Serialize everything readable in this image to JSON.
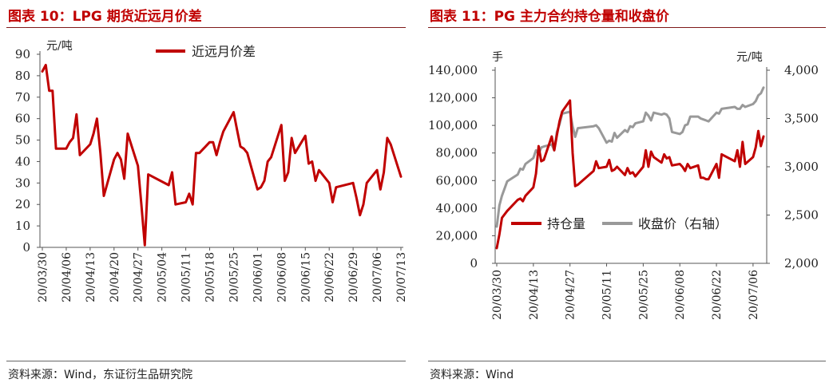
{
  "charts": [
    {
      "title": "图表 10：LPG 期货近远月价差",
      "source": "资料来源：Wind，东证衍生品研究院"
    },
    {
      "title": "图表 11：PG 主力合约持仓量和收盘价",
      "source": "资料来源：Wind"
    }
  ],
  "chart_data": [
    {
      "type": "line",
      "title": "图表 10：LPG 期货近远月价差",
      "ylabel": "元/吨",
      "ylim": [
        0,
        90
      ],
      "yticks": [
        0,
        10,
        20,
        30,
        40,
        50,
        60,
        70,
        80,
        90
      ],
      "xticks": [
        "20/03/30",
        "20/04/06",
        "20/04/13",
        "20/04/20",
        "20/04/27",
        "20/05/04",
        "20/05/11",
        "20/05/18",
        "20/05/25",
        "20/06/01",
        "20/06/08",
        "20/06/15",
        "20/06/22",
        "20/06/29",
        "20/07/06",
        "20/07/13"
      ],
      "legend": "top-center",
      "grid": false,
      "color": "#c00000",
      "series": [
        {
          "name": "近远月价差",
          "points": [
            [
              "2020-03-30",
              82
            ],
            [
              "2020-03-31",
              85
            ],
            [
              "2020-04-01",
              73
            ],
            [
              "2020-04-02",
              73
            ],
            [
              "2020-04-03",
              46
            ],
            [
              "2020-04-06",
              46
            ],
            [
              "2020-04-07",
              49
            ],
            [
              "2020-04-08",
              51
            ],
            [
              "2020-04-09",
              62
            ],
            [
              "2020-04-10",
              43
            ],
            [
              "2020-04-13",
              48
            ],
            [
              "2020-04-14",
              53
            ],
            [
              "2020-04-15",
              60
            ],
            [
              "2020-04-16",
              44
            ],
            [
              "2020-04-17",
              24
            ],
            [
              "2020-04-20",
              41
            ],
            [
              "2020-04-21",
              44
            ],
            [
              "2020-04-22",
              41
            ],
            [
              "2020-04-23",
              32
            ],
            [
              "2020-04-24",
              53
            ],
            [
              "2020-04-27",
              38
            ],
            [
              "2020-04-28",
              20
            ],
            [
              "2020-04-29",
              1
            ],
            [
              "2020-04-30",
              34
            ],
            [
              "2020-05-06",
              29
            ],
            [
              "2020-05-07",
              35
            ],
            [
              "2020-05-08",
              20
            ],
            [
              "2020-05-11",
              21
            ],
            [
              "2020-05-12",
              25
            ],
            [
              "2020-05-13",
              20
            ],
            [
              "2020-05-14",
              44
            ],
            [
              "2020-05-15",
              44
            ],
            [
              "2020-05-18",
              49
            ],
            [
              "2020-05-19",
              49
            ],
            [
              "2020-05-20",
              43
            ],
            [
              "2020-05-21",
              49
            ],
            [
              "2020-05-22",
              54
            ],
            [
              "2020-05-25",
              63
            ],
            [
              "2020-05-26",
              55
            ],
            [
              "2020-05-27",
              47
            ],
            [
              "2020-05-28",
              46
            ],
            [
              "2020-05-29",
              44
            ],
            [
              "2020-06-01",
              27
            ],
            [
              "2020-06-02",
              28
            ],
            [
              "2020-06-03",
              31
            ],
            [
              "2020-06-04",
              40
            ],
            [
              "2020-06-05",
              42
            ],
            [
              "2020-06-08",
              57
            ],
            [
              "2020-06-09",
              31
            ],
            [
              "2020-06-10",
              35
            ],
            [
              "2020-06-11",
              51
            ],
            [
              "2020-06-12",
              44
            ],
            [
              "2020-06-15",
              52
            ],
            [
              "2020-06-16",
              39
            ],
            [
              "2020-06-17",
              40
            ],
            [
              "2020-06-18",
              31
            ],
            [
              "2020-06-19",
              36
            ],
            [
              "2020-06-22",
              30
            ],
            [
              "2020-06-23",
              21
            ],
            [
              "2020-06-24",
              28
            ],
            [
              "2020-06-29",
              30
            ],
            [
              "2020-06-30",
              23
            ],
            [
              "2020-07-01",
              15
            ],
            [
              "2020-07-02",
              20
            ],
            [
              "2020-07-03",
              30
            ],
            [
              "2020-07-06",
              36
            ],
            [
              "2020-07-07",
              27
            ],
            [
              "2020-07-08",
              35
            ],
            [
              "2020-07-09",
              51
            ],
            [
              "2020-07-10",
              48
            ],
            [
              "2020-07-13",
              33
            ]
          ]
        }
      ]
    },
    {
      "type": "line",
      "title": "图表 11：PG 主力合约持仓量和收盘价",
      "ylabel": "手",
      "ylabel_right": "元/吨",
      "ylim": [
        0,
        140000
      ],
      "ylim_right": [
        2000,
        4000
      ],
      "yticks": [
        "0",
        "20,000",
        "40,000",
        "60,000",
        "80,000",
        "100,000",
        "120,000",
        "140,000"
      ],
      "yticks_right": [
        "2,000",
        "2,500",
        "3,000",
        "3,500",
        "4,000"
      ],
      "xticks": [
        "20/03/30",
        "20/04/13",
        "20/04/27",
        "20/05/11",
        "20/05/25",
        "20/06/08",
        "20/06/22",
        "20/07/06"
      ],
      "legend": "bottom-center",
      "grid": false,
      "series": [
        {
          "name": "持仓量",
          "axis": "left",
          "color": "#c00000",
          "points": [
            [
              "2020-03-30",
              11000
            ],
            [
              "2020-03-31",
              21000
            ],
            [
              "2020-04-01",
              33000
            ],
            [
              "2020-04-03",
              38000
            ],
            [
              "2020-04-07",
              46000
            ],
            [
              "2020-04-08",
              47000
            ],
            [
              "2020-04-09",
              45000
            ],
            [
              "2020-04-10",
              49000
            ],
            [
              "2020-04-13",
              55000
            ],
            [
              "2020-04-14",
              65000
            ],
            [
              "2020-04-15",
              85000
            ],
            [
              "2020-04-16",
              74000
            ],
            [
              "2020-04-17",
              75000
            ],
            [
              "2020-04-20",
              92000
            ],
            [
              "2020-04-21",
              82000
            ],
            [
              "2020-04-22",
              93000
            ],
            [
              "2020-04-23",
              103000
            ],
            [
              "2020-04-24",
              110000
            ],
            [
              "2020-04-27",
              118000
            ],
            [
              "2020-04-28",
              80000
            ],
            [
              "2020-04-29",
              56000
            ],
            [
              "2020-04-30",
              57000
            ],
            [
              "2020-05-06",
              67000
            ],
            [
              "2020-05-07",
              74000
            ],
            [
              "2020-05-08",
              69000
            ],
            [
              "2020-05-11",
              70000
            ],
            [
              "2020-05-12",
              75000
            ],
            [
              "2020-05-13",
              67000
            ],
            [
              "2020-05-14",
              68000
            ],
            [
              "2020-05-15",
              70000
            ],
            [
              "2020-05-18",
              64000
            ],
            [
              "2020-05-19",
              69000
            ],
            [
              "2020-05-20",
              65000
            ],
            [
              "2020-05-21",
              66000
            ],
            [
              "2020-05-22",
              63000
            ],
            [
              "2020-05-25",
              70000
            ],
            [
              "2020-05-26",
              82000
            ],
            [
              "2020-05-27",
              70000
            ],
            [
              "2020-05-28",
              81000
            ],
            [
              "2020-05-29",
              77000
            ],
            [
              "2020-06-01",
              73000
            ],
            [
              "2020-06-02",
              79000
            ],
            [
              "2020-06-03",
              76000
            ],
            [
              "2020-06-04",
              77000
            ],
            [
              "2020-06-05",
              71000
            ],
            [
              "2020-06-08",
              72000
            ],
            [
              "2020-06-09",
              70000
            ],
            [
              "2020-06-10",
              67000
            ],
            [
              "2020-06-11",
              72000
            ],
            [
              "2020-06-12",
              69000
            ],
            [
              "2020-06-15",
              71000
            ],
            [
              "2020-06-16",
              62000
            ],
            [
              "2020-06-17",
              62000
            ],
            [
              "2020-06-18",
              61000
            ],
            [
              "2020-06-19",
              61000
            ],
            [
              "2020-06-22",
              72000
            ],
            [
              "2020-06-23",
              62000
            ],
            [
              "2020-06-24",
              79000
            ],
            [
              "2020-06-29",
              74000
            ],
            [
              "2020-06-30",
              82000
            ],
            [
              "2020-07-01",
              70000
            ],
            [
              "2020-07-02",
              88000
            ],
            [
              "2020-07-03",
              72000
            ],
            [
              "2020-07-06",
              77000
            ],
            [
              "2020-07-07",
              84000
            ],
            [
              "2020-07-08",
              96000
            ],
            [
              "2020-07-09",
              85000
            ],
            [
              "2020-07-10",
              92000
            ]
          ]
        },
        {
          "name": "收盘价（右轴）",
          "axis": "right",
          "color": "#999999",
          "points": [
            [
              "2020-03-30",
              2380
            ],
            [
              "2020-03-31",
              2600
            ],
            [
              "2020-04-01",
              2700
            ],
            [
              "2020-04-03",
              2850
            ],
            [
              "2020-04-07",
              2920
            ],
            [
              "2020-04-08",
              2980
            ],
            [
              "2020-04-09",
              2970
            ],
            [
              "2020-04-10",
              3030
            ],
            [
              "2020-04-13",
              3090
            ],
            [
              "2020-04-14",
              3170
            ],
            [
              "2020-04-15",
              3130
            ],
            [
              "2020-04-16",
              3200
            ],
            [
              "2020-04-17",
              3210
            ],
            [
              "2020-04-20",
              3230
            ],
            [
              "2020-04-21",
              3170
            ],
            [
              "2020-04-22",
              3360
            ],
            [
              "2020-04-23",
              3440
            ],
            [
              "2020-04-24",
              3550
            ],
            [
              "2020-04-27",
              3570
            ],
            [
              "2020-04-28",
              3420
            ],
            [
              "2020-04-29",
              3310
            ],
            [
              "2020-04-30",
              3400
            ],
            [
              "2020-05-06",
              3420
            ],
            [
              "2020-05-07",
              3430
            ],
            [
              "2020-05-08",
              3400
            ],
            [
              "2020-05-11",
              3250
            ],
            [
              "2020-05-12",
              3270
            ],
            [
              "2020-05-13",
              3260
            ],
            [
              "2020-05-14",
              3350
            ],
            [
              "2020-05-15",
              3300
            ],
            [
              "2020-05-18",
              3380
            ],
            [
              "2020-05-19",
              3360
            ],
            [
              "2020-05-20",
              3420
            ],
            [
              "2020-05-21",
              3410
            ],
            [
              "2020-05-22",
              3450
            ],
            [
              "2020-05-25",
              3470
            ],
            [
              "2020-05-26",
              3560
            ],
            [
              "2020-05-27",
              3530
            ],
            [
              "2020-05-28",
              3480
            ],
            [
              "2020-05-29",
              3560
            ],
            [
              "2020-06-01",
              3540
            ],
            [
              "2020-06-02",
              3550
            ],
            [
              "2020-06-03",
              3540
            ],
            [
              "2020-06-04",
              3500
            ],
            [
              "2020-06-05",
              3360
            ],
            [
              "2020-06-08",
              3340
            ],
            [
              "2020-06-09",
              3360
            ],
            [
              "2020-06-10",
              3430
            ],
            [
              "2020-06-11",
              3440
            ],
            [
              "2020-06-12",
              3520
            ],
            [
              "2020-06-15",
              3520
            ],
            [
              "2020-06-16",
              3500
            ],
            [
              "2020-06-17",
              3490
            ],
            [
              "2020-06-18",
              3480
            ],
            [
              "2020-06-19",
              3470
            ],
            [
              "2020-06-22",
              3560
            ],
            [
              "2020-06-23",
              3550
            ],
            [
              "2020-06-24",
              3600
            ],
            [
              "2020-06-29",
              3620
            ],
            [
              "2020-06-30",
              3600
            ],
            [
              "2020-07-01",
              3600
            ],
            [
              "2020-07-02",
              3640
            ],
            [
              "2020-07-03",
              3620
            ],
            [
              "2020-07-06",
              3650
            ],
            [
              "2020-07-07",
              3680
            ],
            [
              "2020-07-08",
              3740
            ],
            [
              "2020-07-09",
              3760
            ],
            [
              "2020-07-10",
              3820
            ]
          ]
        }
      ]
    }
  ]
}
